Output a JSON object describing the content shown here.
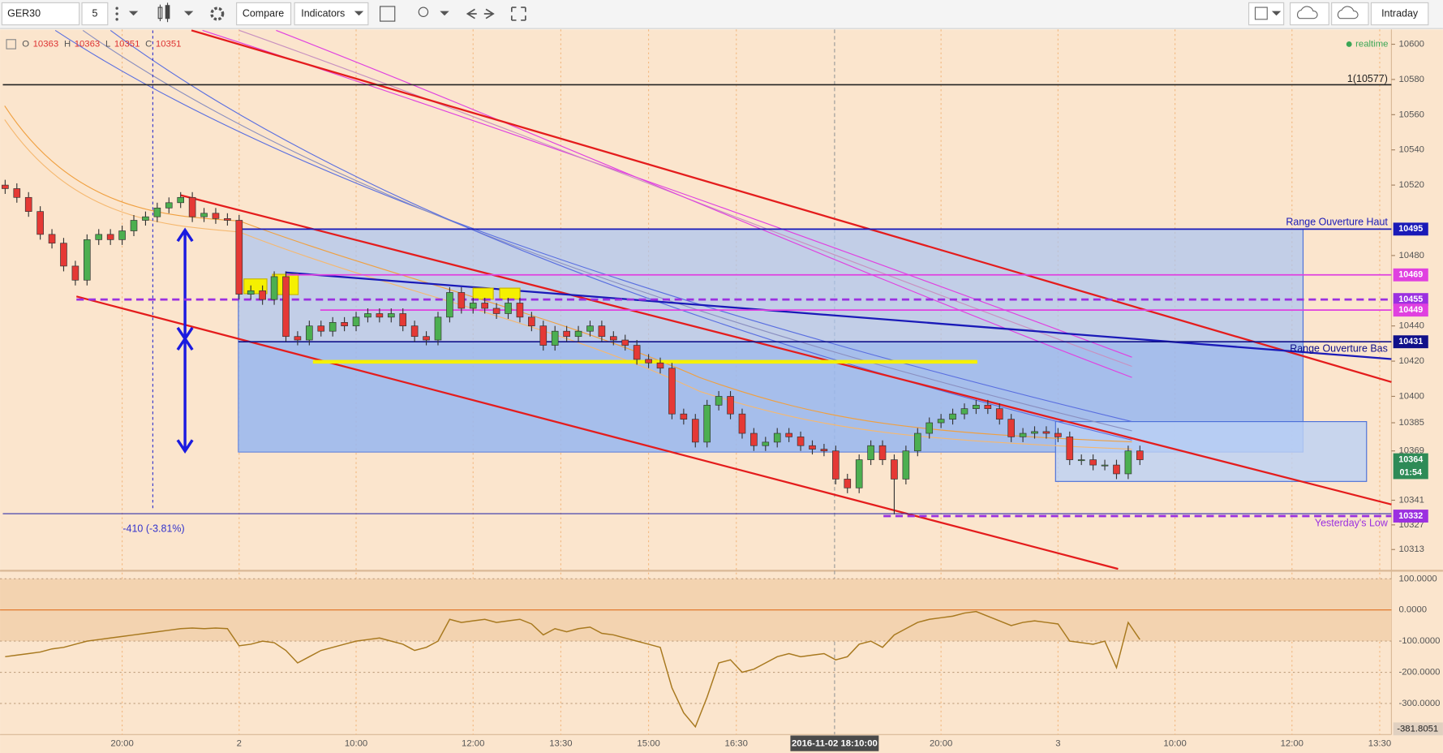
{
  "toolbar": {
    "symbol": "GER30",
    "interval": "5",
    "compare": "Compare",
    "indicators": "Indicators",
    "range": "Intraday"
  },
  "chart_data": [
    {
      "type": "candlestick",
      "legend_labels": [
        "O",
        "H",
        "L",
        "C"
      ],
      "legend_values": [
        10363,
        10363,
        10351,
        10351
      ],
      "status": "realtime",
      "measure_label": "-410 (-3.81%)",
      "up_color": "#4caf50",
      "down_color": "#e53935",
      "open": [
        10520,
        10518,
        10513,
        10505,
        10492,
        10487,
        10474,
        10466,
        10489,
        10492,
        10489,
        10494,
        10500,
        10502,
        10507,
        10510,
        10513,
        10502,
        10504,
        10501,
        10500,
        10458,
        10460,
        10455,
        10468,
        10434,
        10432,
        10440,
        10437,
        10442,
        10440,
        10445,
        10447,
        10445,
        10447,
        10440,
        10434,
        10432,
        10445,
        10459,
        10450,
        10453,
        10450,
        10447,
        10453,
        10445,
        10440,
        10429,
        10437,
        10434,
        10437,
        10440,
        10434,
        10432,
        10429,
        10421,
        10419,
        10416,
        10390,
        10387,
        10374,
        10395,
        10400,
        10390,
        10379,
        10372,
        10374,
        10379,
        10377,
        10372,
        10370,
        10369,
        10353,
        10348,
        10364,
        10372,
        10364,
        10353,
        10369,
        10379,
        10385,
        10387,
        10390,
        10393,
        10395,
        10393,
        10387,
        10377,
        10379,
        10380,
        10379,
        10377,
        10364,
        10364,
        10361,
        10361,
        10356,
        10369
      ],
      "high": [
        10523,
        10521,
        10516,
        10508,
        10495,
        10490,
        10477,
        10492,
        10495,
        10495,
        10497,
        10503,
        10505,
        10510,
        10513,
        10516,
        10516,
        10507,
        10507,
        10504,
        10503,
        10463,
        10463,
        10471,
        10471,
        10437,
        10443,
        10443,
        10445,
        10445,
        10448,
        10450,
        10450,
        10450,
        10450,
        10443,
        10437,
        10448,
        10462,
        10462,
        10456,
        10456,
        10453,
        10456,
        10456,
        10448,
        10443,
        10440,
        10440,
        10440,
        10443,
        10443,
        10437,
        10435,
        10432,
        10424,
        10422,
        10419,
        10393,
        10390,
        10398,
        10403,
        10403,
        10393,
        10382,
        10377,
        10382,
        10382,
        10380,
        10375,
        10373,
        10372,
        10356,
        10367,
        10375,
        10375,
        10367,
        10372,
        10382,
        10388,
        10390,
        10393,
        10396,
        10398,
        10398,
        10396,
        10390,
        10382,
        10383,
        10383,
        10382,
        10380,
        10367,
        10367,
        10364,
        10364,
        10372,
        10372
      ],
      "low": [
        10515,
        10510,
        10502,
        10489,
        10484,
        10471,
        10463,
        10463,
        10486,
        10486,
        10486,
        10491,
        10497,
        10499,
        10504,
        10507,
        10499,
        10499,
        10498,
        10497,
        10455,
        10455,
        10452,
        10452,
        10431,
        10429,
        10429,
        10434,
        10434,
        10437,
        10437,
        10442,
        10442,
        10442,
        10437,
        10431,
        10429,
        10429,
        10442,
        10447,
        10447,
        10447,
        10444,
        10444,
        10442,
        10437,
        10426,
        10426,
        10431,
        10431,
        10434,
        10431,
        10429,
        10426,
        10418,
        10416,
        10413,
        10387,
        10384,
        10371,
        10371,
        10392,
        10387,
        10376,
        10369,
        10369,
        10371,
        10374,
        10369,
        10367,
        10366,
        10350,
        10345,
        10345,
        10361,
        10361,
        10333,
        10350,
        10366,
        10376,
        10382,
        10384,
        10387,
        10390,
        10390,
        10384,
        10374,
        10374,
        10376,
        10376,
        10374,
        10361,
        10361,
        10358,
        10358,
        10353,
        10353,
        10361
      ],
      "close": [
        10518,
        10513,
        10505,
        10492,
        10487,
        10474,
        10466,
        10489,
        10492,
        10489,
        10494,
        10500,
        10502,
        10507,
        10510,
        10513,
        10502,
        10504,
        10501,
        10500,
        10458,
        10460,
        10455,
        10468,
        10434,
        10432,
        10440,
        10437,
        10442,
        10440,
        10445,
        10447,
        10445,
        10447,
        10440,
        10434,
        10432,
        10445,
        10459,
        10450,
        10453,
        10450,
        10447,
        10453,
        10445,
        10440,
        10429,
        10437,
        10434,
        10437,
        10440,
        10434,
        10432,
        10429,
        10421,
        10419,
        10416,
        10390,
        10387,
        10374,
        10395,
        10400,
        10390,
        10379,
        10372,
        10374,
        10379,
        10377,
        10372,
        10370,
        10369,
        10353,
        10348,
        10364,
        10372,
        10364,
        10353,
        10369,
        10379,
        10385,
        10387,
        10390,
        10393,
        10395,
        10393,
        10387,
        10377,
        10379,
        10380,
        10379,
        10377,
        10364,
        10364,
        10361,
        10361,
        10356,
        10369,
        10364
      ],
      "xlim": [
        -0.2,
        118.5
      ],
      "xticks": [
        {
          "value": 10,
          "label": "20:00"
        },
        {
          "value": 20,
          "label": "2"
        },
        {
          "value": 30,
          "label": "10:00"
        },
        {
          "value": 40,
          "label": "12:00"
        },
        {
          "value": 47.5,
          "label": "13:30"
        },
        {
          "value": 55,
          "label": "15:00"
        },
        {
          "value": 62.5,
          "label": "16:30"
        },
        {
          "value": 80,
          "label": "20:00"
        },
        {
          "value": 90,
          "label": "3"
        },
        {
          "value": 100,
          "label": "10:00"
        },
        {
          "value": 110,
          "label": "12:00"
        },
        {
          "value": 117.5,
          "label": "13:30"
        }
      ],
      "crosshair": {
        "value": 70.9,
        "label": "2016-11-02 18:10:00"
      },
      "ylim": [
        10302,
        10608.4
      ],
      "yticks": [
        10600,
        10580,
        10560,
        10540,
        10520,
        10480,
        10440,
        10420,
        10400,
        10385,
        10369,
        10341,
        10327,
        10313
      ],
      "levels": [
        {
          "value": 10577,
          "color": "#222222",
          "label": "1(10577)"
        },
        {
          "value": 10495,
          "color": "#1a1ab8",
          "label": "Range Ouverture Haut"
        },
        {
          "value": 10469,
          "color": "#e040e0"
        },
        {
          "value": 10455,
          "color": "#9b30e0"
        },
        {
          "value": 10449,
          "color": "#e040e0"
        },
        {
          "value": 10431,
          "color": "#10108a",
          "label": "Range Ouverture Bas"
        },
        {
          "value": 10332,
          "color": "#9b30e0",
          "label": "Yesterday's Low"
        }
      ],
      "current": {
        "value": 10364,
        "countdown": "01:54",
        "color": "#2e8b57"
      }
    },
    {
      "type": "line",
      "color": "#a8791f",
      "values": [
        -150,
        -145,
        -140,
        -135,
        -125,
        -120,
        -110,
        -100,
        -95,
        -90,
        -85,
        -80,
        -75,
        -70,
        -65,
        -60,
        -58,
        -60,
        -58,
        -60,
        -115,
        -110,
        -100,
        -105,
        -130,
        -170,
        -150,
        -130,
        -120,
        -110,
        -100,
        -95,
        -90,
        -100,
        -110,
        -130,
        -120,
        -100,
        -30,
        -40,
        -35,
        -30,
        -40,
        -35,
        -30,
        -45,
        -80,
        -60,
        -70,
        -60,
        -55,
        -75,
        -80,
        -90,
        -100,
        -110,
        -120,
        -250,
        -330,
        -375,
        -280,
        -170,
        -160,
        -200,
        -190,
        -170,
        -150,
        -140,
        -150,
        -145,
        -140,
        -160,
        -150,
        -110,
        -100,
        -120,
        -80,
        -60,
        -40,
        -30,
        -25,
        -20,
        -10,
        -5,
        -20,
        -35,
        -50,
        -40,
        -35,
        -40,
        -45,
        -100,
        -105,
        -110,
        -100,
        -185,
        -40,
        -95
      ],
      "ylim": [
        -400,
        120
      ],
      "yticks": [
        {
          "value": 100,
          "label": "100.0000"
        },
        {
          "value": 0,
          "label": "0.0000"
        },
        {
          "value": -100,
          "label": "-100.0000"
        },
        {
          "value": -200,
          "label": "-200.0000"
        },
        {
          "value": -300,
          "label": "-300.0000"
        }
      ],
      "marker": -381.8051
    }
  ]
}
